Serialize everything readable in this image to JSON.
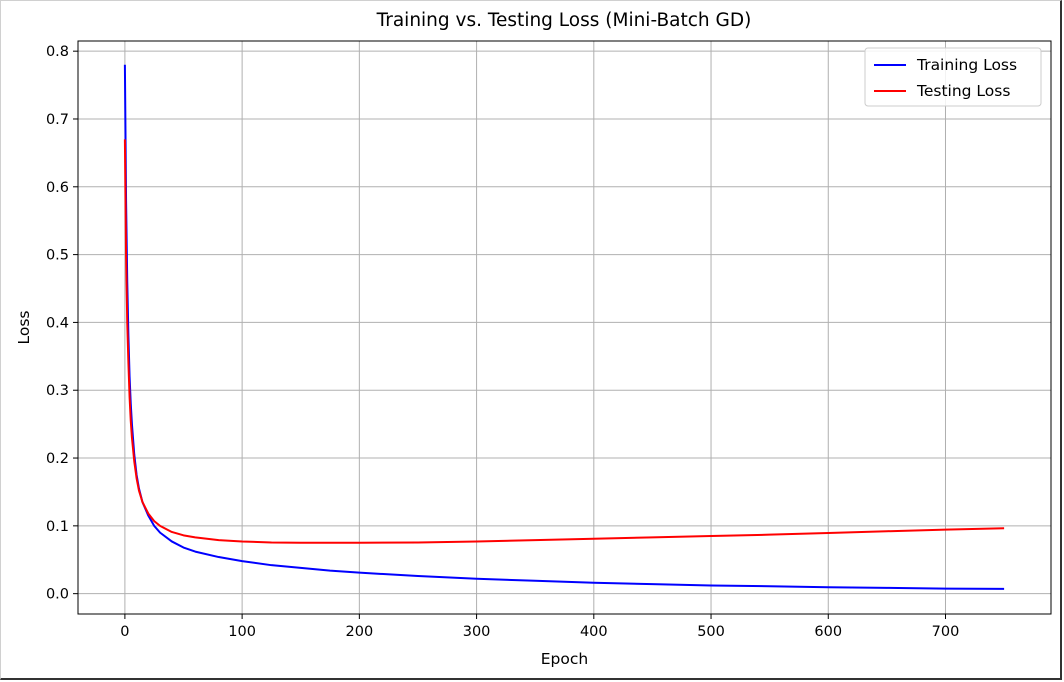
{
  "chart_data": {
    "type": "line",
    "title": "Training vs. Testing Loss (Mini-Batch GD)",
    "xlabel": "Epoch",
    "ylabel": "Loss",
    "xlim": [
      -40,
      790
    ],
    "ylim": [
      -0.03,
      0.815
    ],
    "xticks": [
      0,
      100,
      200,
      300,
      400,
      500,
      600,
      700
    ],
    "yticks": [
      0.0,
      0.1,
      0.2,
      0.3,
      0.4,
      0.5,
      0.6,
      0.7,
      0.8
    ],
    "grid": true,
    "legend_position": "top-right",
    "series": [
      {
        "name": "Training Loss",
        "color": "#0000ff",
        "x": [
          0,
          1,
          2,
          3,
          4,
          5,
          6,
          8,
          10,
          12,
          15,
          20,
          25,
          30,
          40,
          50,
          60,
          80,
          100,
          125,
          150,
          175,
          200,
          250,
          300,
          350,
          400,
          450,
          500,
          550,
          600,
          650,
          700,
          750
        ],
        "y": [
          0.78,
          0.58,
          0.46,
          0.38,
          0.32,
          0.28,
          0.25,
          0.205,
          0.175,
          0.155,
          0.135,
          0.115,
          0.1,
          0.09,
          0.077,
          0.068,
          0.062,
          0.054,
          0.048,
          0.042,
          0.038,
          0.034,
          0.031,
          0.026,
          0.022,
          0.019,
          0.016,
          0.014,
          0.012,
          0.011,
          0.0095,
          0.0085,
          0.0075,
          0.007
        ]
      },
      {
        "name": "Testing Loss",
        "color": "#ff0000",
        "x": [
          0,
          1,
          2,
          3,
          4,
          5,
          6,
          8,
          10,
          12,
          15,
          20,
          25,
          30,
          40,
          50,
          60,
          80,
          100,
          125,
          150,
          175,
          200,
          250,
          300,
          350,
          400,
          450,
          500,
          550,
          600,
          650,
          700,
          750
        ],
        "y": [
          0.67,
          0.5,
          0.4,
          0.34,
          0.29,
          0.255,
          0.23,
          0.195,
          0.17,
          0.152,
          0.135,
          0.118,
          0.107,
          0.1,
          0.091,
          0.086,
          0.083,
          0.079,
          0.077,
          0.0755,
          0.075,
          0.075,
          0.075,
          0.0755,
          0.077,
          0.079,
          0.081,
          0.083,
          0.085,
          0.087,
          0.0895,
          0.092,
          0.0945,
          0.0965
        ]
      }
    ]
  }
}
